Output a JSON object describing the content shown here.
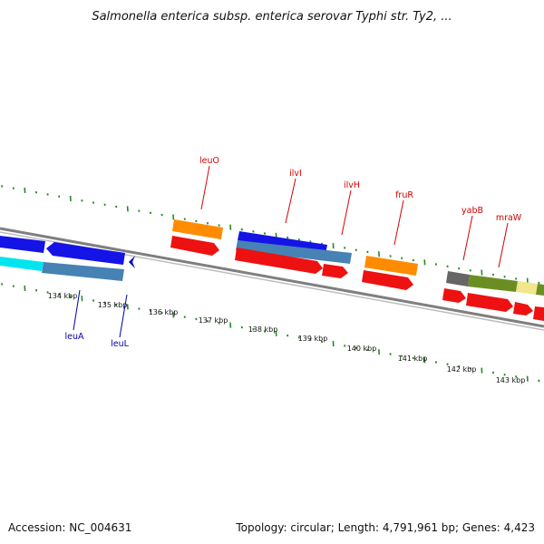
{
  "title": "Salmonella enterica subsp. enterica serovar Typhi str. Ty2, ...",
  "footer": {
    "accession": "Accession: NC_004631",
    "summary": "Topology: circular; Length: 4,791,961 bp; Genes: 4,423"
  },
  "colors": {
    "backbone": "#8a8a8a",
    "ticks": "#228b22",
    "label_top": "#d40000",
    "label_bottom": "#0000aa",
    "red": "#ee1111",
    "orange": "#ff8c00",
    "blue": "#1414e6",
    "steel": "#4682b4",
    "cyan": "#00e5ee",
    "olive": "#6b8e23",
    "gray": "#666666",
    "khaki": "#f0e68c"
  },
  "ticks": [
    {
      "label": "134 kbp"
    },
    {
      "label": "135 kbp"
    },
    {
      "label": "136 kbp"
    },
    {
      "label": "137 kbp"
    },
    {
      "label": "138 kbp"
    },
    {
      "label": "139 kbp"
    },
    {
      "label": "140 kbp"
    },
    {
      "label": "141 kbp"
    },
    {
      "label": "142 kbp"
    },
    {
      "label": "143 kbp"
    }
  ],
  "gene_labels_top": [
    "leuO",
    "ilvI",
    "ilvH",
    "fruR",
    "yabB",
    "mraW"
  ],
  "gene_labels_bottom": [
    "leuA",
    "leuL"
  ]
}
